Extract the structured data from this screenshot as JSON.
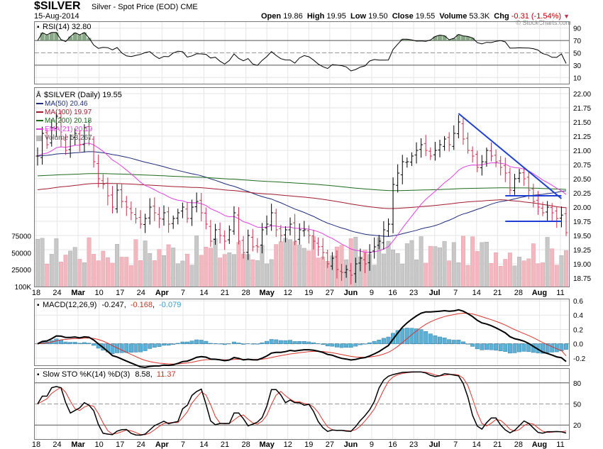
{
  "header": {
    "symbol": "$SILVER",
    "name": "Silver - Spot Price (EOD)",
    "exchange": "CME",
    "date": "15-Aug-2014",
    "open_label": "Open",
    "open": "19.86",
    "high_label": "High",
    "high": "19.95",
    "low_label": "Low",
    "low": "19.50",
    "close_label": "Close",
    "close": "19.55",
    "volume_label": "Volume",
    "volume": "53.3K",
    "chg_label": "Chg",
    "chg": "-0.31 (-1.54%)",
    "credit": "© StockCharts.com",
    "colors": {
      "up": "#000000",
      "down": "#c0334d",
      "chg": "#c00000"
    }
  },
  "rsi_panel": {
    "legend": "RSI(14) 32.80",
    "axis_labels": [
      "90",
      "70",
      "50",
      "30",
      "10"
    ],
    "overbought": 70,
    "oversold": 30
  },
  "price_panel": {
    "legend": {
      "title": "$SILVER (Daily) 19.55",
      "ma50": "MA(50) 20.46",
      "ma100": "MA(100) 19.97",
      "ma200": "MA(200) 20.18",
      "ema21": "EMA(21) 20.19",
      "volume": "Volume 53,267"
    },
    "price_labels": [
      "22.00",
      "21.75",
      "21.50",
      "21.25",
      "21.00",
      "20.75",
      "20.50",
      "20.25",
      "20.00",
      "19.75",
      "19.50",
      "19.25",
      "19.00",
      "18.75"
    ],
    "volume_labels": [
      "100K",
      "75000",
      "50000",
      "25000"
    ],
    "colors": {
      "ma50": "#1f2d7a",
      "ma100": "#a01c2e",
      "ma200": "#1d6b1d",
      "ema21": "#e040e0",
      "trendline": "#1f3fd6"
    }
  },
  "macd_panel": {
    "legend_name": "MACD(12,26,9)",
    "macd": "-0.247",
    "signal": "-0.168",
    "histogram": "-0.079",
    "axis_labels": [
      "0.6",
      "0.4",
      "0.2",
      "0.0",
      "-0.2"
    ]
  },
  "sto_panel": {
    "legend_name": "Slow STO %K(14) %D(3)",
    "k": "8.58",
    "d": "11.37",
    "axis_labels": [
      "80",
      "50",
      "20"
    ]
  },
  "x_axis": {
    "labels": [
      "18",
      "24",
      "Mar",
      "10",
      "17",
      "24",
      "Apr",
      "7",
      "14",
      "21",
      "28",
      "May",
      "12",
      "19",
      "27",
      "Jun",
      "9",
      "16",
      "23",
      "Jul",
      "7",
      "14",
      "21",
      "28",
      "Aug",
      "11"
    ],
    "bold_labels": [
      "Mar",
      "Apr",
      "May",
      "Jun",
      "Jul",
      "Aug"
    ]
  },
  "chart_data": {
    "type": "line",
    "title": "$SILVER Silver - Spot Price (EOD) CME",
    "x_range": [
      "2014-02-18",
      "2014-08-15"
    ],
    "price": {
      "ylim": [
        18.6,
        22.1
      ],
      "close_series": [
        20.9,
        21.3,
        21.1,
        21.4,
        21.6,
        21.2,
        21.0,
        21.2,
        21.3,
        21.1,
        21.4,
        21.2,
        20.8,
        20.5,
        20.4,
        20.2,
        20.0,
        20.3,
        20.1,
        20.0,
        19.9,
        19.8,
        19.7,
        19.8,
        20.0,
        19.9,
        19.8,
        19.9,
        19.7,
        19.8,
        19.9,
        20.0,
        19.8,
        20.0,
        20.1,
        19.9,
        19.7,
        19.4,
        19.6,
        19.5,
        19.4,
        19.6,
        19.9,
        19.4,
        19.2,
        19.5,
        19.3,
        19.3,
        19.6,
        19.7,
        19.9,
        19.6,
        19.5,
        19.6,
        19.7,
        19.4,
        19.6,
        19.6,
        19.5,
        19.4,
        19.3,
        19.2,
        19.0,
        19.1,
        18.9,
        18.85,
        18.9,
        18.8,
        19.0,
        19.1,
        19.0,
        19.2,
        19.3,
        19.4,
        19.6,
        19.7,
        20.4,
        20.6,
        20.8,
        20.8,
        20.9,
        21.0,
        21.1,
        21.0,
        20.9,
        21.0,
        21.1,
        21.2,
        21.1,
        21.3,
        21.5,
        21.2,
        21.0,
        20.9,
        20.7,
        20.8,
        21.0,
        20.9,
        20.8,
        20.7,
        20.6,
        20.3,
        20.5,
        20.6,
        20.5,
        20.3,
        20.1,
        20.0,
        19.9,
        20.0,
        19.9,
        19.8,
        19.86,
        19.55
      ],
      "ma50": {
        "label": "MA(50)",
        "value": 20.46
      },
      "ma100": {
        "label": "MA(100)",
        "value": 19.97
      },
      "ma200": {
        "label": "MA(200)",
        "value": 20.18
      },
      "ema21": {
        "label": "EMA(21)",
        "value": 20.19
      },
      "last_close": 19.55
    },
    "volume": {
      "ylim": [
        0,
        110000
      ],
      "last": 53267
    },
    "rsi": {
      "period": 14,
      "last": 32.8,
      "ylim": [
        0,
        100
      ]
    },
    "macd": {
      "params": "12,26,9",
      "macd": -0.247,
      "signal": -0.168,
      "histogram": -0.079,
      "ylim": [
        -0.3,
        0.62
      ]
    },
    "slow_sto": {
      "params": "%K(14) %D(3)",
      "k": 8.58,
      "d": 11.37,
      "ylim": [
        0,
        100
      ]
    }
  }
}
